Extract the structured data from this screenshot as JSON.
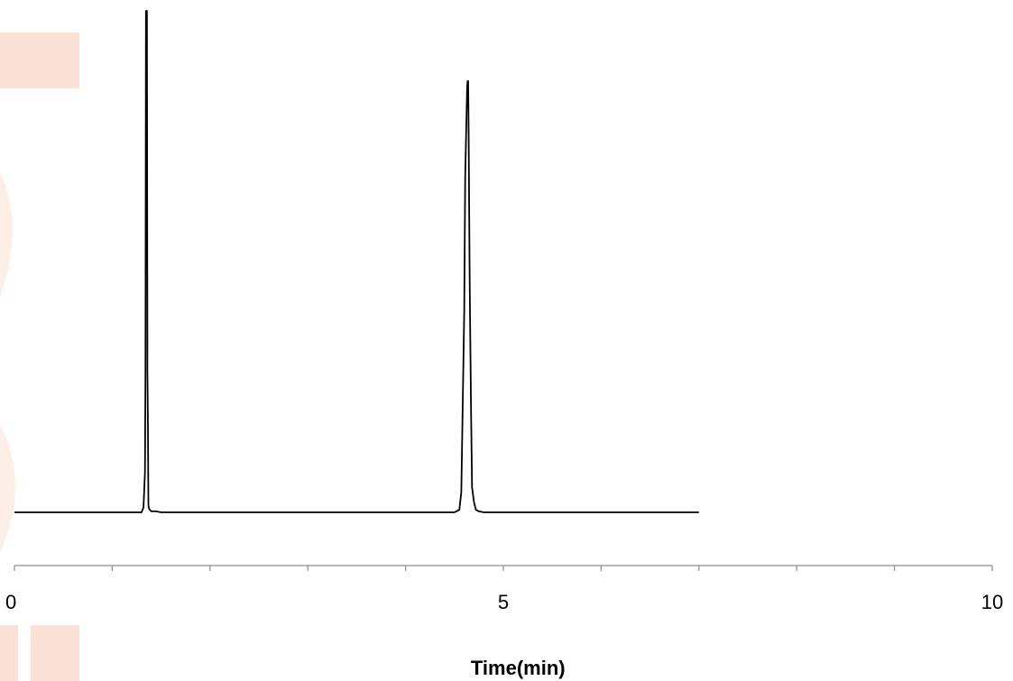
{
  "watermark_color": "#FBE1D6",
  "chart_data": {
    "type": "line",
    "xlabel": "Time(min)",
    "ylabel": "",
    "xlim": [
      0,
      10
    ],
    "ylim": [
      0,
      100
    ],
    "x_ticks": [
      0,
      5,
      10
    ],
    "x_minor_ticks": [
      1,
      2,
      3,
      4,
      6,
      7,
      8,
      9
    ],
    "y_axis_visible": false,
    "grid": false,
    "line_color": "#000000",
    "series": [
      {
        "x": [
          0.0,
          1.3,
          1.32,
          1.335,
          1.34,
          1.345,
          1.355,
          1.36,
          1.365,
          1.37,
          1.375,
          1.385,
          1.4,
          1.45,
          1.5,
          3.0,
          4.5,
          4.55,
          4.57,
          4.58,
          4.6,
          4.61,
          4.62,
          4.63,
          4.635,
          4.64,
          4.645,
          4.655,
          4.66,
          4.67,
          4.68,
          4.7,
          4.72,
          4.75,
          4.8,
          5.0,
          7.0
        ],
        "y": [
          0.0,
          0.0,
          1.0,
          8.0,
          28.0,
          100.0,
          100.0,
          28.0,
          18.0,
          1.5,
          0.8,
          0.5,
          0.2,
          0.2,
          0.0,
          0.0,
          0.0,
          0.5,
          4.0,
          16.0,
          40.0,
          67.0,
          76.0,
          85.0,
          86.0,
          86.0,
          76.0,
          48.0,
          38.0,
          20.0,
          5.0,
          2.0,
          0.5,
          0.2,
          0.0,
          0.0,
          0.0
        ]
      }
    ]
  }
}
